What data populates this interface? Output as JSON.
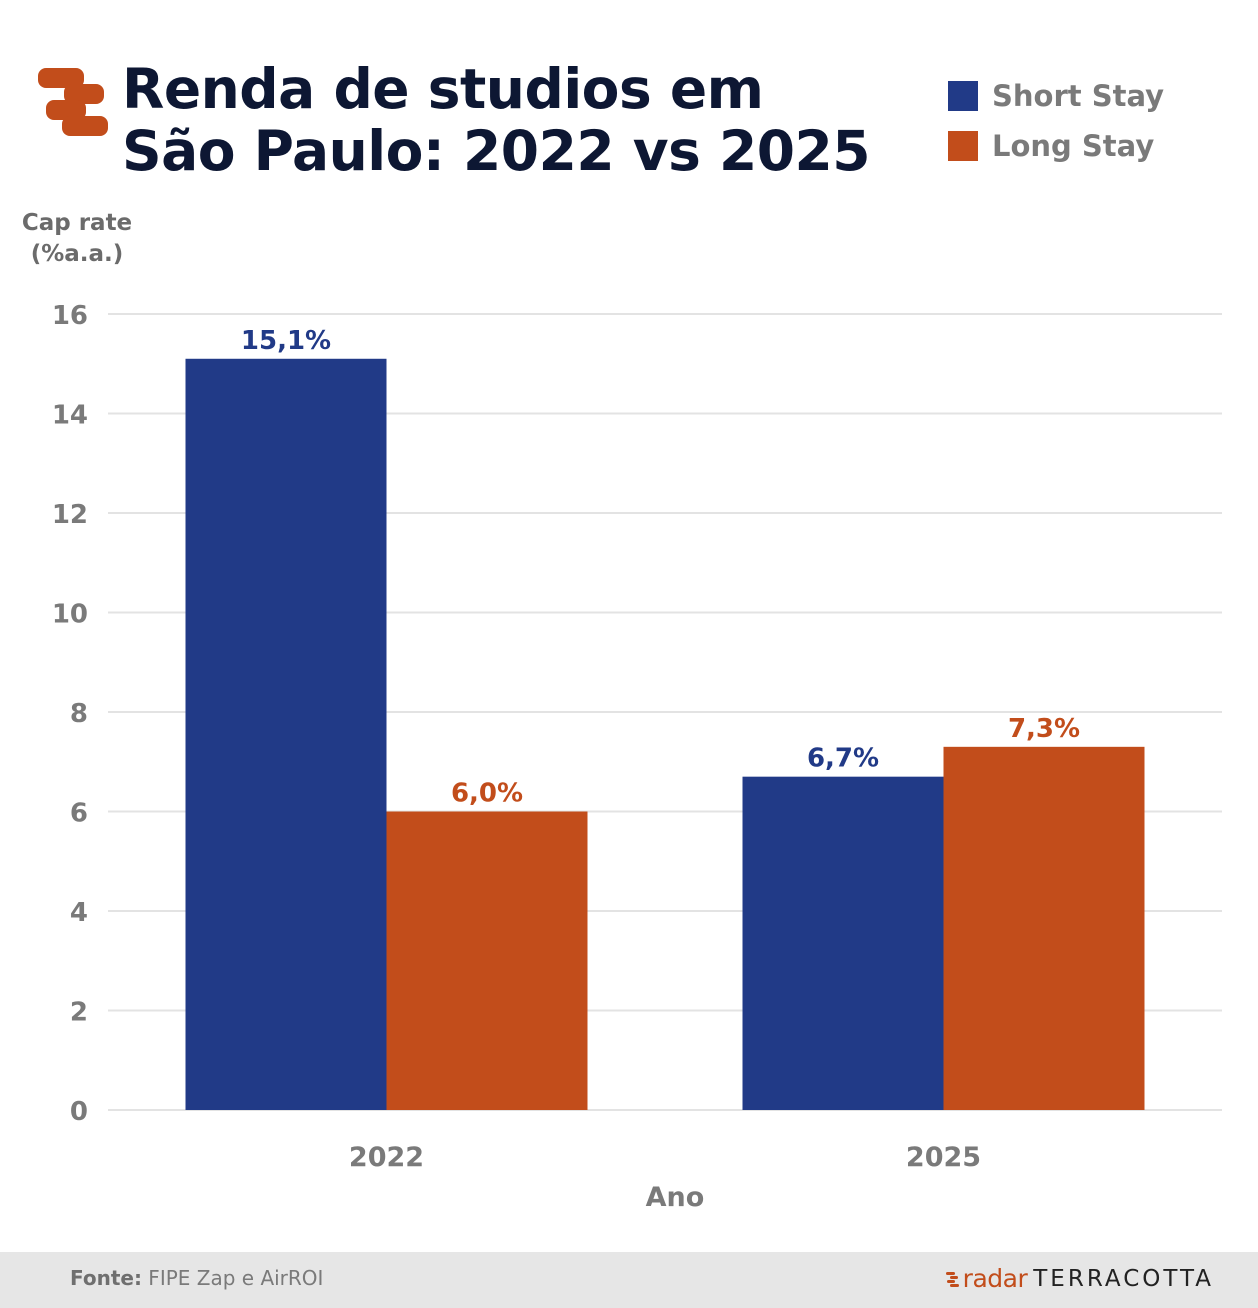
{
  "header": {
    "title_line1": "Renda de studios em",
    "title_line2": "São Paulo: 2022 vs 2025"
  },
  "colors": {
    "short_stay": "#213a87",
    "long_stay": "#c24d1b",
    "grid": "#e3e3e3",
    "tick": "#7a7a7a"
  },
  "legend": [
    {
      "label": "Short Stay",
      "color": "#213a87",
      "icon": "legend-square"
    },
    {
      "label": "Long Stay",
      "color": "#c24d1b",
      "icon": "legend-square"
    }
  ],
  "y_axis": {
    "title_line1": "Cap rate",
    "title_line2": "(%a.a.)"
  },
  "chart_data": {
    "type": "bar",
    "title": "Renda de studios em São Paulo: 2022 vs 2025",
    "xlabel": "Ano",
    "ylabel": "Cap rate (%a.a.)",
    "categories": [
      "2022",
      "2025"
    ],
    "series": [
      {
        "name": "Short Stay",
        "values": [
          15.1,
          6.7
        ],
        "labels": [
          "15,1%",
          "6,7%"
        ],
        "color": "#213a87"
      },
      {
        "name": "Long Stay",
        "values": [
          6.0,
          7.3
        ],
        "labels": [
          "6,0%",
          "7,3%"
        ],
        "color": "#c24d1b"
      }
    ],
    "ylim": [
      0,
      16
    ],
    "yticks": [
      0,
      2,
      4,
      6,
      8,
      10,
      12,
      14,
      16
    ],
    "grid": true,
    "legend_position": "top-right"
  },
  "footer": {
    "source_label": "Fonte:",
    "source_text": " FIPE Zap e AirROI",
    "brand_radar": "radar",
    "brand_terracotta": "TERRACOTTA"
  }
}
